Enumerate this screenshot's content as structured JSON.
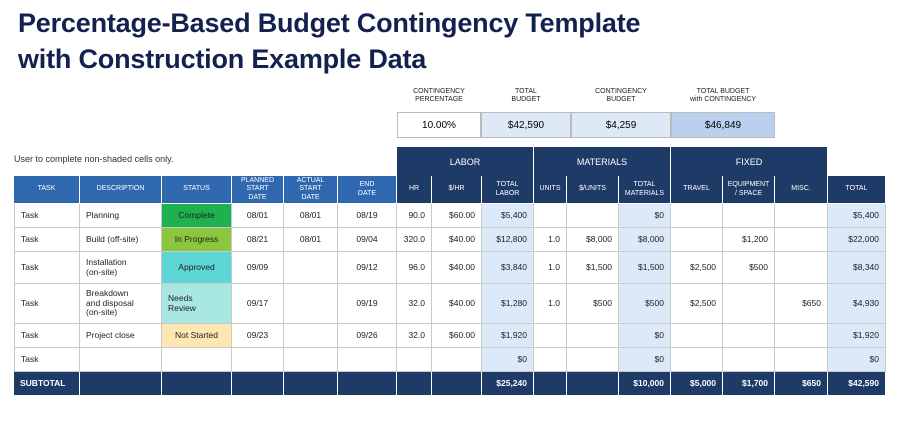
{
  "title_lines": [
    "Percentage-Based Budget Contingency Template",
    "with Construction Example Data"
  ],
  "summary": {
    "headers": [
      "CONTINGENCY\nPERCENTAGE",
      "TOTAL\nBUDGET",
      "CONTINGENCY\nBUDGET",
      "TOTAL BUDGET\nwith CONTINGENCY"
    ],
    "values": [
      "10.00%",
      "$42,590",
      "$4,259",
      "$46,849"
    ]
  },
  "note": "User to complete non-shaded cells only.",
  "groups": [
    "LABOR",
    "MATERIALS",
    "FIXED"
  ],
  "columns": [
    "TASK",
    "DESCRIPTION",
    "STATUS",
    "PLANNED\nSTART DATE",
    "ACTUAL\nSTART DATE",
    "END\nDATE",
    "HR",
    "$/HR",
    "TOTAL\nLABOR",
    "UNITS",
    "$/UNITS",
    "TOTAL\nMATERIALS",
    "TRAVEL",
    "EQUIPMENT\n/ SPACE",
    "MISC.",
    "TOTAL"
  ],
  "rows": [
    [
      "Task",
      "Planning",
      "Complete",
      "08/01",
      "08/01",
      "08/19",
      "90.0",
      "$60.00",
      "$5,400",
      null,
      null,
      "$0",
      null,
      null,
      null,
      "$5,400"
    ],
    [
      "Task",
      "Build (off-site)",
      "In Progress",
      "08/21",
      "08/01",
      "09/04",
      "320.0",
      "$40.00",
      "$12,800",
      "1.0",
      "$8,000",
      "$8,000",
      null,
      "$1,200",
      null,
      "$22,000"
    ],
    [
      "Task",
      "Installation\n(on-site)",
      "Approved",
      "09/09",
      null,
      "09/12",
      "96.0",
      "$40.00",
      "$3,840",
      "1.0",
      "$1,500",
      "$1,500",
      "$2,500",
      "$500",
      null,
      "$8,340"
    ],
    [
      "Task",
      "Breakdown\nand disposal\n(on-site)",
      "Needs\nReview",
      "09/17",
      null,
      "09/19",
      "32.0",
      "$40.00",
      "$1,280",
      "1.0",
      "$500",
      "$500",
      "$2,500",
      null,
      "$650",
      "$4,930"
    ],
    [
      "Task",
      "Project close",
      "Not Started",
      "09/23",
      null,
      "09/26",
      "32.0",
      "$60.00",
      "$1,920",
      null,
      null,
      "$0",
      null,
      null,
      null,
      "$1,920"
    ],
    [
      "Task",
      null,
      null,
      null,
      null,
      null,
      null,
      null,
      "$0",
      null,
      null,
      "$0",
      null,
      null,
      null,
      "$0"
    ]
  ],
  "subtotal": [
    "SUBTOTAL",
    null,
    null,
    null,
    null,
    null,
    null,
    null,
    "$25,240",
    null,
    null,
    "$10,000",
    "$5,000",
    "$1,700",
    "$650",
    "$42,590"
  ]
}
